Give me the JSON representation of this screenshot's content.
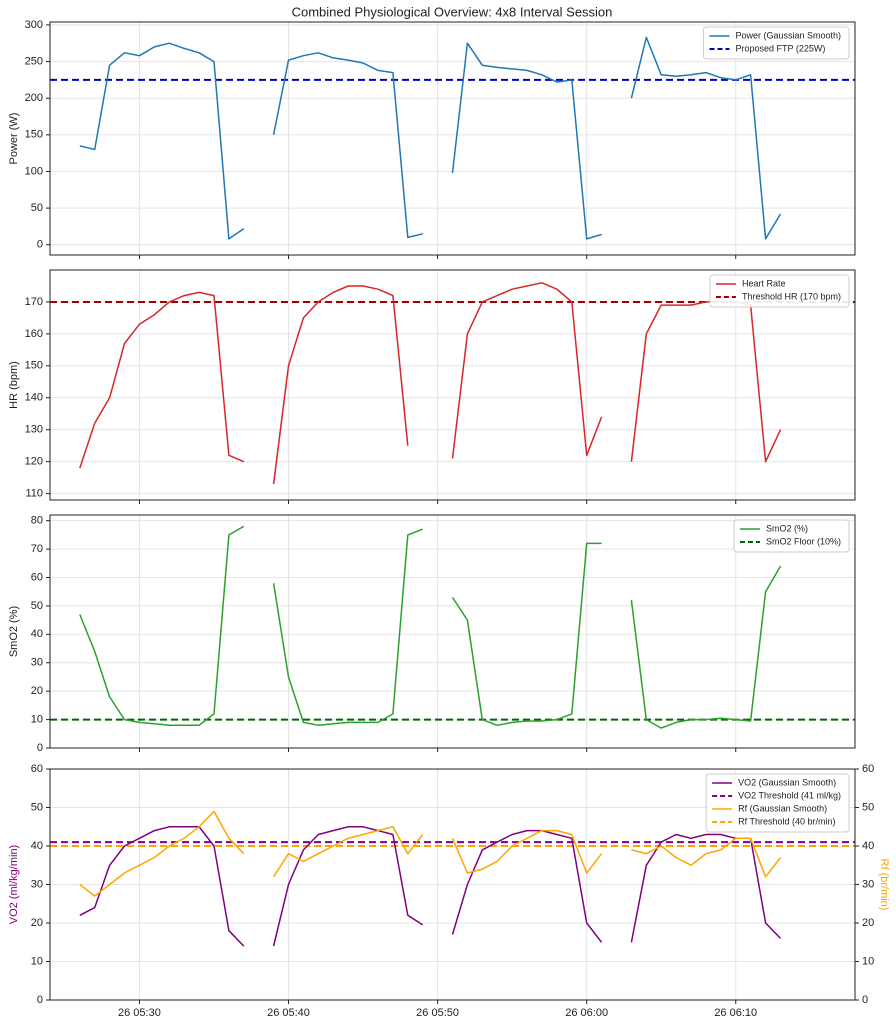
{
  "title": "Combined Physiological Overview: 4x8 Interval Session",
  "chart_data": [
    {
      "type": "line",
      "ylabel": "Power (W)",
      "ylim": [
        -14,
        304
      ],
      "yticks": [
        0,
        50,
        100,
        150,
        200,
        250,
        300
      ],
      "grid": true,
      "legend": "upper right",
      "series": [
        {
          "name": "Power (Gaussian Smooth)",
          "color": "#1f77b4",
          "values": [
            135,
            130,
            245,
            262,
            258,
            270,
            275,
            268,
            262,
            250,
            8,
            22,
            null,
            150,
            252,
            258,
            262,
            255,
            252,
            248,
            238,
            235,
            10,
            15,
            null,
            98,
            275,
            245,
            242,
            240,
            238,
            232,
            222,
            225,
            8,
            14,
            null,
            200,
            283,
            232,
            230,
            232,
            235,
            228,
            225,
            232,
            8,
            42
          ]
        }
      ],
      "hlines": [
        {
          "name": "Proposed FTP (225W)",
          "value": 225,
          "color": "#0000cc"
        }
      ]
    },
    {
      "type": "line",
      "ylabel": "HR (bpm)",
      "ylim": [
        108,
        180
      ],
      "yticks": [
        110,
        120,
        130,
        140,
        150,
        160,
        170
      ],
      "grid": true,
      "legend": "upper right",
      "series": [
        {
          "name": "Heart Rate",
          "color": "#d62728",
          "values": [
            118,
            132,
            140,
            157,
            163,
            166,
            170,
            172,
            173,
            172,
            122,
            120,
            null,
            113,
            150,
            165,
            170,
            173,
            175,
            175,
            174,
            172,
            125,
            null,
            null,
            121,
            160,
            170,
            172,
            174,
            175,
            176,
            174,
            170,
            122,
            134,
            null,
            120,
            160,
            169,
            169,
            169,
            170,
            170,
            170,
            169,
            120,
            130
          ]
        }
      ],
      "hlines": [
        {
          "name": "Threshold HR (170 bpm)",
          "value": 170,
          "color": "#a00000"
        }
      ]
    },
    {
      "type": "line",
      "ylabel": "SmO2 (%)",
      "ylim": [
        0,
        82
      ],
      "yticks": [
        0,
        10,
        20,
        30,
        40,
        50,
        60,
        70,
        80
      ],
      "grid": true,
      "legend": "upper right",
      "series": [
        {
          "name": "SmO2 (%)",
          "color": "#2ca02c",
          "values": [
            47,
            34,
            18,
            10,
            9,
            8.5,
            8,
            8,
            8,
            12,
            75,
            78,
            null,
            58,
            25,
            9,
            8,
            8.5,
            9,
            9,
            9,
            12,
            75,
            77,
            null,
            53,
            45,
            10,
            8,
            9,
            9.5,
            9.5,
            10,
            12,
            72,
            72,
            null,
            52,
            10,
            7,
            9,
            10,
            10,
            10.5,
            10,
            9.5,
            55,
            64
          ]
        }
      ],
      "hlines": [
        {
          "name": "SmO2 Floor (10%)",
          "value": 10,
          "color": "#006400"
        }
      ]
    },
    {
      "type": "line",
      "ylabel": "VO2 (ml/kg/min)",
      "y2label": "Rf (br/min)",
      "ylim": [
        0,
        60
      ],
      "yticks": [
        0,
        10,
        20,
        30,
        40,
        50,
        60
      ],
      "y2lim": [
        0,
        60
      ],
      "y2ticks": [
        0,
        10,
        20,
        30,
        40,
        50,
        60
      ],
      "grid": true,
      "legend": "upper right",
      "xlim": [
        "26 05:24",
        "26 06:18"
      ],
      "xticks": [
        "26 05:30",
        "26 05:40",
        "26 05:50",
        "26 06:00",
        "26 06:10"
      ],
      "x": [
        "26 05:26",
        "26 05:27",
        "26 05:28",
        "26 05:29",
        "26 05:30",
        "26 05:31",
        "26 05:32",
        "26 05:33",
        "26 05:34",
        "26 05:35",
        "26 05:36",
        "26 05:37",
        "26 05:38",
        "26 05:39",
        "26 05:40",
        "26 05:41",
        "26 05:42",
        "26 05:43",
        "26 05:44",
        "26 05:45",
        "26 05:46",
        "26 05:47",
        "26 05:48",
        "26 05:49",
        "26 05:50",
        "26 05:51",
        "26 05:52",
        "26 05:53",
        "26 05:54",
        "26 05:55",
        "26 05:56",
        "26 05:57",
        "26 05:58",
        "26 05:59",
        "26 06:00",
        "26 06:01",
        "26 06:02",
        "26 06:03",
        "26 06:04",
        "26 06:05",
        "26 06:06",
        "26 06:07",
        "26 06:08",
        "26 06:09",
        "26 06:10",
        "26 06:11",
        "26 06:12",
        "26 06:13"
      ],
      "series": [
        {
          "name": "VO2 (Gaussian Smooth)",
          "color": "#800080",
          "values": [
            22,
            24,
            35,
            40,
            42,
            44,
            45,
            45,
            45,
            40,
            18,
            14,
            null,
            14,
            30,
            39,
            43,
            44,
            45,
            45,
            44,
            43,
            22,
            19.5,
            null,
            17,
            30,
            39,
            41,
            43,
            44,
            44,
            43,
            42,
            20,
            15,
            null,
            15,
            35,
            41,
            43,
            42,
            43,
            43,
            42,
            42,
            20,
            16
          ]
        },
        {
          "name": "Rf (Gaussian Smooth)",
          "color": "#ffa500",
          "axis": "y2",
          "values": [
            30,
            27,
            30,
            33,
            35,
            37,
            40,
            42,
            45,
            49,
            42,
            38,
            null,
            32,
            38,
            36,
            38,
            40,
            42,
            43,
            44,
            45,
            38,
            43,
            null,
            42,
            33,
            34,
            36,
            40,
            42,
            44,
            44,
            43,
            33,
            38,
            null,
            39,
            38,
            40,
            37,
            35,
            38,
            39,
            42,
            42,
            32,
            37
          ]
        }
      ],
      "hlines": [
        {
          "name": "VO2 Threshold (41 ml/kg)",
          "value": 41,
          "color": "#800080"
        },
        {
          "name": "Rf Threshold (40 br/min)",
          "value": 40,
          "color": "#ffa500",
          "axis": "y2"
        }
      ]
    }
  ]
}
